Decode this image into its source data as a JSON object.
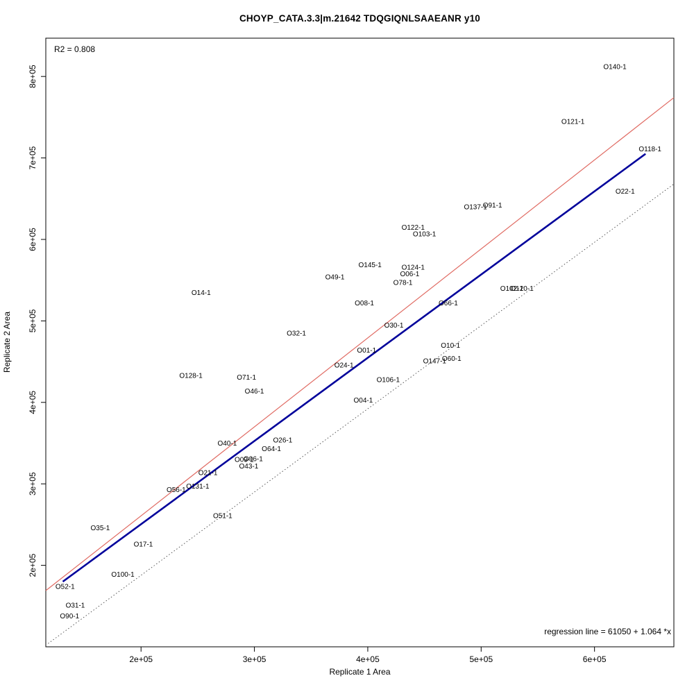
{
  "chart_data": {
    "type": "scatter",
    "title": "CHOYP_CATA.3.3|m.21642 TDQGIQNLSAAEANR y10",
    "xlabel": "Replicate 1 Area",
    "ylabel": "Replicate 2 Area",
    "xlim": [
      116000,
      670000
    ],
    "ylim": [
      100000,
      847000
    ],
    "grid": false,
    "r_squared": 0.808,
    "regression": {
      "intercept": 61050,
      "slope": 1.064
    },
    "annotations": {
      "r2": "R2 = 0.808",
      "regression": "regression line = 61050 + 1.064 *x"
    },
    "x_ticks": [
      {
        "value": 200000,
        "label": "2e+05"
      },
      {
        "value": 300000,
        "label": "3e+05"
      },
      {
        "value": 400000,
        "label": "4e+05"
      },
      {
        "value": 500000,
        "label": "5e+05"
      },
      {
        "value": 600000,
        "label": "6e+05"
      }
    ],
    "y_ticks": [
      {
        "value": 200000,
        "label": "2e+05"
      },
      {
        "value": 300000,
        "label": "3e+05"
      },
      {
        "value": 400000,
        "label": "4e+05"
      },
      {
        "value": 500000,
        "label": "5e+05"
      },
      {
        "value": 600000,
        "label": "6e+05"
      },
      {
        "value": 700000,
        "label": "7e+05"
      },
      {
        "value": 800000,
        "label": "8e+05"
      }
    ],
    "lines": [
      {
        "name": "dotted-reference-line",
        "style": "dotted",
        "color": "#444444",
        "width": 0.9,
        "x1": 118000,
        "y1": 104000,
        "x2": 670000,
        "y2": 668000
      },
      {
        "name": "regression-line-red",
        "style": "solid",
        "color": "#e06a62",
        "width": 1.2,
        "x1": 116000,
        "y1": 169000,
        "x2": 670000,
        "y2": 774000
      },
      {
        "name": "fit-line-blue",
        "style": "solid",
        "color": "#00009b",
        "width": 2.6,
        "x1": 131000,
        "y1": 180000,
        "x2": 645000,
        "y2": 705000
      }
    ],
    "points": [
      {
        "label": "O140-1",
        "x": 618000,
        "y": 812000
      },
      {
        "label": "O121-1",
        "x": 581000,
        "y": 745000
      },
      {
        "label": "O118-1",
        "x": 649000,
        "y": 711000
      },
      {
        "label": "O22-1",
        "x": 627000,
        "y": 659000
      },
      {
        "label": "O137-1",
        "x": 495000,
        "y": 640000
      },
      {
        "label": "O91-1",
        "x": 510000,
        "y": 642000
      },
      {
        "label": "O122-1",
        "x": 440000,
        "y": 615000
      },
      {
        "label": "O103-1",
        "x": 450000,
        "y": 607000
      },
      {
        "label": "O145-1",
        "x": 402000,
        "y": 569000
      },
      {
        "label": "O124-1",
        "x": 440000,
        "y": 566000
      },
      {
        "label": "O06-1",
        "x": 437000,
        "y": 558000
      },
      {
        "label": "O49-1",
        "x": 371000,
        "y": 554000
      },
      {
        "label": "O78-1",
        "x": 431000,
        "y": 547000
      },
      {
        "label": "O14-1",
        "x": 253000,
        "y": 535000
      },
      {
        "label": "O102-1",
        "x": 527000,
        "y": 540000
      },
      {
        "label": "O120-1",
        "x": 536000,
        "y": 540000
      },
      {
        "label": "O08-1",
        "x": 397000,
        "y": 522000
      },
      {
        "label": "O66-1",
        "x": 471000,
        "y": 522000
      },
      {
        "label": "O30-1",
        "x": 423000,
        "y": 495000
      },
      {
        "label": "O32-1",
        "x": 337000,
        "y": 485000
      },
      {
        "label": "O10-1",
        "x": 473000,
        "y": 470000
      },
      {
        "label": "O01-1",
        "x": 399000,
        "y": 464000
      },
      {
        "label": "O60-1",
        "x": 474000,
        "y": 454000
      },
      {
        "label": "O147-1",
        "x": 459000,
        "y": 451000
      },
      {
        "label": "O24-1",
        "x": 379000,
        "y": 446000
      },
      {
        "label": "O128-1",
        "x": 244000,
        "y": 433000
      },
      {
        "label": "O71-1",
        "x": 293000,
        "y": 431000
      },
      {
        "label": "O106-1",
        "x": 418000,
        "y": 428000
      },
      {
        "label": "O46-1",
        "x": 300000,
        "y": 414000
      },
      {
        "label": "O04-1",
        "x": 396000,
        "y": 403000
      },
      {
        "label": "O26-1",
        "x": 325000,
        "y": 354000
      },
      {
        "label": "O40-1",
        "x": 276000,
        "y": 350000
      },
      {
        "label": "O64-1",
        "x": 315000,
        "y": 343000
      },
      {
        "label": "O09-1",
        "x": 291000,
        "y": 330000
      },
      {
        "label": "O96-1",
        "x": 299000,
        "y": 331000
      },
      {
        "label": "O43-1",
        "x": 295000,
        "y": 322000
      },
      {
        "label": "O21-1",
        "x": 259000,
        "y": 314000
      },
      {
        "label": "O131-1",
        "x": 250000,
        "y": 297000
      },
      {
        "label": "O56-1",
        "x": 231000,
        "y": 293000
      },
      {
        "label": "O51-1",
        "x": 272000,
        "y": 261000
      },
      {
        "label": "O35-1",
        "x": 164000,
        "y": 246000
      },
      {
        "label": "O17-1",
        "x": 202000,
        "y": 226000
      },
      {
        "label": "O100-1",
        "x": 184000,
        "y": 189000
      },
      {
        "label": "O52-1",
        "x": 133000,
        "y": 174000
      },
      {
        "label": "O31-1",
        "x": 142000,
        "y": 151000
      },
      {
        "label": "O90-1",
        "x": 137000,
        "y": 138000
      }
    ]
  }
}
